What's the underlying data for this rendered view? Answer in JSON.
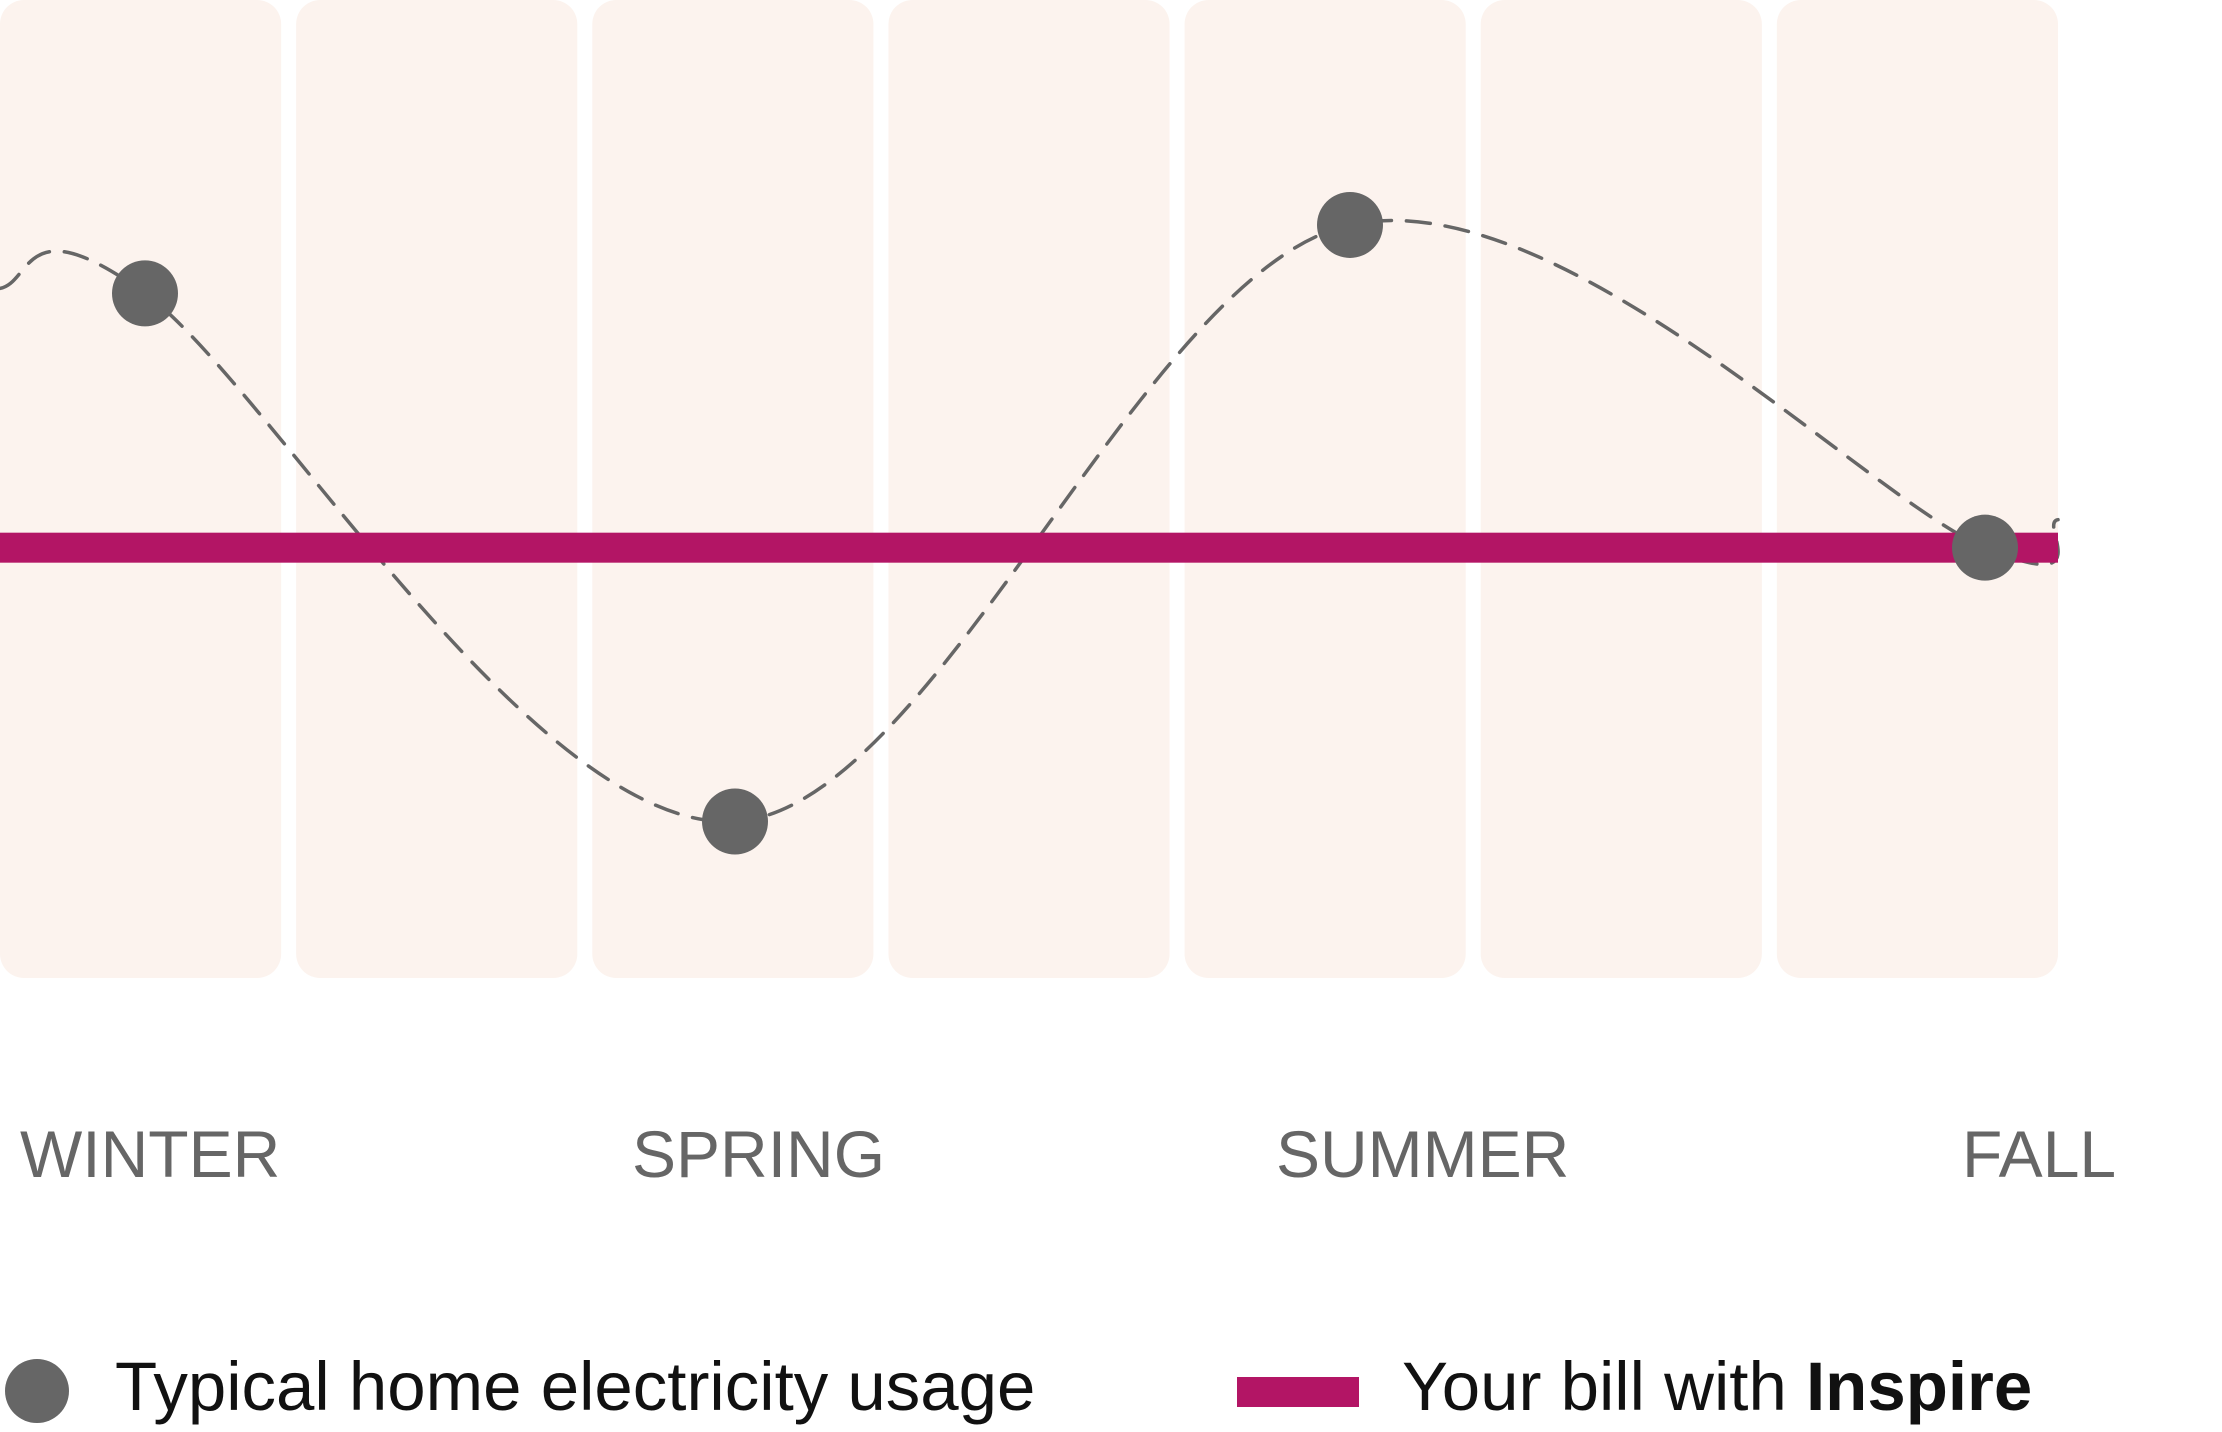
{
  "chart_data": {
    "type": "line",
    "title": "",
    "xlabel": "",
    "ylabel": "",
    "categories": [
      "WINTER",
      "SPRING",
      "SUMMER",
      "FALL"
    ],
    "grid": false,
    "background_columns": 7,
    "series": [
      {
        "name": "Typical home electricity usage",
        "style": "dashed-curve-with-dots",
        "values": [
          0.7,
          0.16,
          0.77,
          0.44
        ]
      },
      {
        "name": "Your bill with Inspire",
        "style": "flat-bar",
        "values": [
          0.44,
          0.44,
          0.44,
          0.44
        ]
      }
    ],
    "ylim": [
      0,
      1
    ],
    "legend": {
      "placement": "bottom",
      "items": [
        {
          "marker": "circle",
          "text": "Typical home electricity usage"
        },
        {
          "marker": "bar",
          "text_prefix": "Your bill with ",
          "text_strong": "Inspire"
        }
      ]
    }
  },
  "colors": {
    "column_fill": "#fcf3ee",
    "usage": "#666666",
    "bill": "#b31565",
    "season_text": "#666666",
    "legend_text": "#111111"
  }
}
